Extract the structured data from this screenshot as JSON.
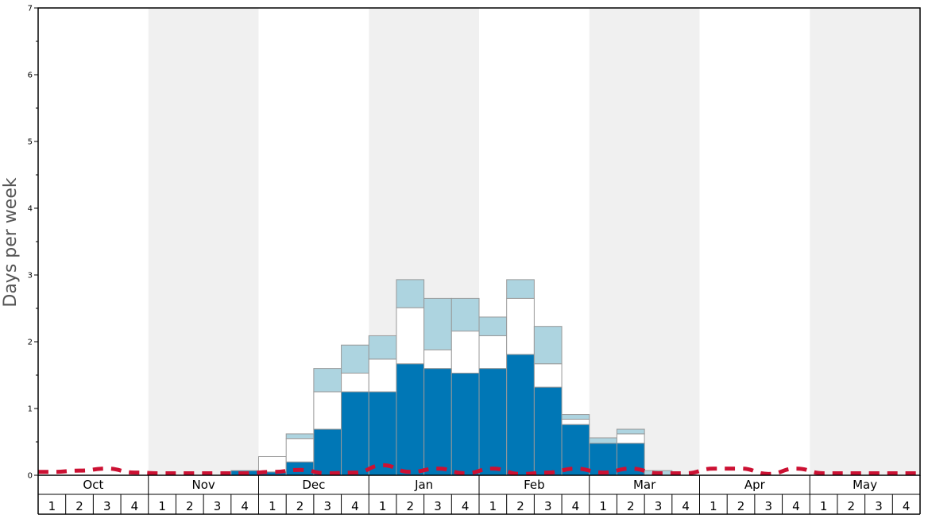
{
  "chart_data": {
    "type": "bar",
    "stacked": true,
    "ylabel": "Days per week",
    "ylim": [
      0,
      7
    ],
    "y_ticks": [
      "0",
      "1",
      "2",
      "3",
      "4",
      "5",
      "6",
      "7"
    ],
    "months": [
      "Oct",
      "Nov",
      "Dec",
      "Jan",
      "Feb",
      "Mar",
      "Apr",
      "May"
    ],
    "weeks_per_month": [
      "1",
      "2",
      "3",
      "4"
    ],
    "alternating_month_shading": true,
    "colors": {
      "bottom": "#0077b6",
      "middle": "#ffffff",
      "top": "#add4e0",
      "bar_border": "#999999",
      "line": "#cc1133",
      "shade": "#f0f0f0"
    },
    "series": [
      {
        "values": [
          0,
          0,
          0,
          0,
          0,
          0,
          0,
          0.07,
          0.05,
          0.2,
          0.69,
          1.25,
          1.25,
          1.67,
          1.6,
          1.53,
          1.6,
          1.81,
          1.32,
          0.76,
          0.48,
          0.48,
          0,
          0,
          0,
          0,
          0,
          0,
          0,
          0,
          0,
          0
        ]
      },
      {
        "values": [
          0,
          0,
          0,
          0,
          0,
          0,
          0,
          0,
          0.23,
          0.35,
          0.56,
          0.28,
          0.49,
          0.84,
          0.28,
          0.63,
          0.49,
          0.84,
          0.35,
          0.08,
          0,
          0.14,
          0,
          0,
          0,
          0,
          0,
          0,
          0,
          0,
          0,
          0
        ]
      },
      {
        "values": [
          0,
          0,
          0,
          0,
          0,
          0,
          0,
          0,
          0,
          0.07,
          0.35,
          0.42,
          0.35,
          0.42,
          0.77,
          0.49,
          0.28,
          0.28,
          0.56,
          0.07,
          0.08,
          0.07,
          0.07,
          0,
          0,
          0,
          0,
          0,
          0,
          0,
          0,
          0
        ]
      },
      {
        "type": "line",
        "dashed": true,
        "values": [
          0.05,
          0.07,
          0.1,
          0.04,
          0.03,
          0.03,
          0.03,
          0.03,
          0.05,
          0.08,
          0.03,
          0.04,
          0.15,
          0.05,
          0.1,
          0.03,
          0.1,
          0.02,
          0.04,
          0.1,
          0.04,
          0.1,
          0.03,
          0.03,
          0.1,
          0.1,
          0.02,
          0.1,
          0.03,
          0.03,
          0.03,
          0.03
        ]
      }
    ]
  }
}
